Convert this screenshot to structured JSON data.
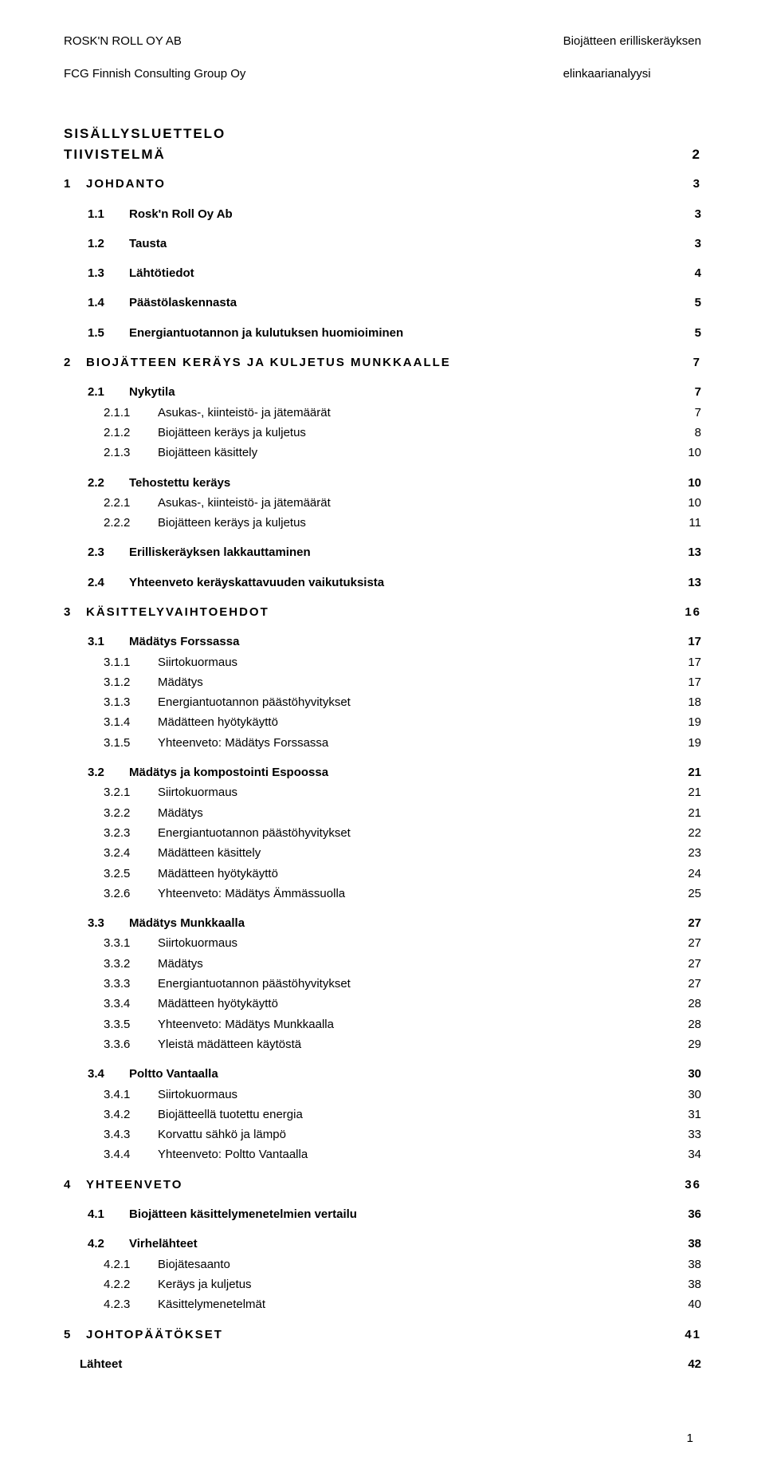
{
  "header": {
    "left_line1": "ROSK'N ROLL OY AB",
    "left_line2": "FCG Finnish Consulting Group Oy",
    "right_line1": "Biojätteen erilliskeräyksen",
    "right_line2": "elinkaarianalyysi"
  },
  "headings": {
    "sisallys": "SISÄLLYSLUETTELO",
    "tiivistelma_label": "TIIVISTELMÄ",
    "tiivistelma_pg": "2"
  },
  "toc": [
    {
      "lvl": 0,
      "bold": true,
      "spaced": true,
      "num": "1",
      "label": "JOHDANTO",
      "pg": "3",
      "gap_before": false
    },
    {
      "lvl": 1,
      "bold": true,
      "spaced": false,
      "num": "1.1",
      "label": "Rosk'n Roll Oy Ab",
      "pg": "3",
      "gap_before": true
    },
    {
      "lvl": 1,
      "bold": true,
      "spaced": false,
      "num": "1.2",
      "label": "Tausta",
      "pg": "3",
      "gap_before": true
    },
    {
      "lvl": 1,
      "bold": true,
      "spaced": false,
      "num": "1.3",
      "label": "Lähtötiedot",
      "pg": "4",
      "gap_before": true
    },
    {
      "lvl": 1,
      "bold": true,
      "spaced": false,
      "num": "1.4",
      "label": "Päästölaskennasta",
      "pg": "5",
      "gap_before": true
    },
    {
      "lvl": 1,
      "bold": true,
      "spaced": false,
      "num": "1.5",
      "label": "Energiantuotannon ja kulutuksen huomioiminen",
      "pg": "5",
      "gap_before": true
    },
    {
      "lvl": 0,
      "bold": true,
      "spaced": true,
      "num": "2",
      "label": "BIOJÄTTEEN KERÄYS JA KULJETUS MUNKKAALLE",
      "pg": "7",
      "gap_before": true
    },
    {
      "lvl": 1,
      "bold": true,
      "spaced": false,
      "num": "2.1",
      "label": "Nykytila",
      "pg": "7",
      "gap_before": true
    },
    {
      "lvl": 2,
      "bold": false,
      "spaced": false,
      "num": "2.1.1",
      "label": "Asukas-, kiinteistö- ja jätemäärät",
      "pg": "7",
      "gap_before": false
    },
    {
      "lvl": 2,
      "bold": false,
      "spaced": false,
      "num": "2.1.2",
      "label": "Biojätteen keräys ja kuljetus",
      "pg": "8",
      "gap_before": false
    },
    {
      "lvl": 2,
      "bold": false,
      "spaced": false,
      "num": "2.1.3",
      "label": "Biojätteen käsittely",
      "pg": "10",
      "gap_before": false
    },
    {
      "lvl": 1,
      "bold": true,
      "spaced": false,
      "num": "2.2",
      "label": "Tehostettu keräys",
      "pg": "10",
      "gap_before": true
    },
    {
      "lvl": 2,
      "bold": false,
      "spaced": false,
      "num": "2.2.1",
      "label": "Asukas-, kiinteistö- ja jätemäärät",
      "pg": "10",
      "gap_before": false
    },
    {
      "lvl": 2,
      "bold": false,
      "spaced": false,
      "num": "2.2.2",
      "label": "Biojätteen keräys ja kuljetus",
      "pg": "11",
      "gap_before": false
    },
    {
      "lvl": 1,
      "bold": true,
      "spaced": false,
      "num": "2.3",
      "label": "Erilliskeräyksen lakkauttaminen",
      "pg": "13",
      "gap_before": true
    },
    {
      "lvl": 1,
      "bold": true,
      "spaced": false,
      "num": "2.4",
      "label": "Yhteenveto keräyskattavuuden vaikutuksista",
      "pg": "13",
      "gap_before": true
    },
    {
      "lvl": 0,
      "bold": true,
      "spaced": true,
      "num": "3",
      "label": "KÄSITTELYVAIHTOEHDOT",
      "pg": "16",
      "gap_before": true
    },
    {
      "lvl": 1,
      "bold": true,
      "spaced": false,
      "num": "3.1",
      "label": "Mädätys Forssassa",
      "pg": "17",
      "gap_before": true
    },
    {
      "lvl": 2,
      "bold": false,
      "spaced": false,
      "num": "3.1.1",
      "label": "Siirtokuormaus",
      "pg": "17",
      "gap_before": false
    },
    {
      "lvl": 2,
      "bold": false,
      "spaced": false,
      "num": "3.1.2",
      "label": "Mädätys",
      "pg": "17",
      "gap_before": false
    },
    {
      "lvl": 2,
      "bold": false,
      "spaced": false,
      "num": "3.1.3",
      "label": "Energiantuotannon päästöhyvitykset",
      "pg": "18",
      "gap_before": false
    },
    {
      "lvl": 2,
      "bold": false,
      "spaced": false,
      "num": "3.1.4",
      "label": "Mädätteen hyötykäyttö",
      "pg": "19",
      "gap_before": false
    },
    {
      "lvl": 2,
      "bold": false,
      "spaced": false,
      "num": "3.1.5",
      "label": "Yhteenveto: Mädätys Forssassa",
      "pg": "19",
      "gap_before": false
    },
    {
      "lvl": 1,
      "bold": true,
      "spaced": false,
      "num": "3.2",
      "label": "Mädätys ja kompostointi Espoossa",
      "pg": "21",
      "gap_before": true
    },
    {
      "lvl": 2,
      "bold": false,
      "spaced": false,
      "num": "3.2.1",
      "label": "Siirtokuormaus",
      "pg": "21",
      "gap_before": false
    },
    {
      "lvl": 2,
      "bold": false,
      "spaced": false,
      "num": "3.2.2",
      "label": "Mädätys",
      "pg": "21",
      "gap_before": false
    },
    {
      "lvl": 2,
      "bold": false,
      "spaced": false,
      "num": "3.2.3",
      "label": "Energiantuotannon päästöhyvitykset",
      "pg": "22",
      "gap_before": false
    },
    {
      "lvl": 2,
      "bold": false,
      "spaced": false,
      "num": "3.2.4",
      "label": "Mädätteen käsittely",
      "pg": "23",
      "gap_before": false
    },
    {
      "lvl": 2,
      "bold": false,
      "spaced": false,
      "num": "3.2.5",
      "label": "Mädätteen hyötykäyttö",
      "pg": "24",
      "gap_before": false
    },
    {
      "lvl": 2,
      "bold": false,
      "spaced": false,
      "num": "3.2.6",
      "label": "Yhteenveto: Mädätys Ämmässuolla",
      "pg": "25",
      "gap_before": false
    },
    {
      "lvl": 1,
      "bold": true,
      "spaced": false,
      "num": "3.3",
      "label": "Mädätys Munkkaalla",
      "pg": "27",
      "gap_before": true
    },
    {
      "lvl": 2,
      "bold": false,
      "spaced": false,
      "num": "3.3.1",
      "label": "Siirtokuormaus",
      "pg": "27",
      "gap_before": false
    },
    {
      "lvl": 2,
      "bold": false,
      "spaced": false,
      "num": "3.3.2",
      "label": "Mädätys",
      "pg": "27",
      "gap_before": false
    },
    {
      "lvl": 2,
      "bold": false,
      "spaced": false,
      "num": "3.3.3",
      "label": "Energiantuotannon päästöhyvitykset",
      "pg": "27",
      "gap_before": false
    },
    {
      "lvl": 2,
      "bold": false,
      "spaced": false,
      "num": "3.3.4",
      "label": "Mädätteen hyötykäyttö",
      "pg": "28",
      "gap_before": false
    },
    {
      "lvl": 2,
      "bold": false,
      "spaced": false,
      "num": "3.3.5",
      "label": "Yhteenveto: Mädätys Munkkaalla",
      "pg": "28",
      "gap_before": false
    },
    {
      "lvl": 2,
      "bold": false,
      "spaced": false,
      "num": "3.3.6",
      "label": "Yleistä mädätteen käytöstä",
      "pg": "29",
      "gap_before": false
    },
    {
      "lvl": 1,
      "bold": true,
      "spaced": false,
      "num": "3.4",
      "label": "Poltto Vantaalla",
      "pg": "30",
      "gap_before": true
    },
    {
      "lvl": 2,
      "bold": false,
      "spaced": false,
      "num": "3.4.1",
      "label": "Siirtokuormaus",
      "pg": "30",
      "gap_before": false
    },
    {
      "lvl": 2,
      "bold": false,
      "spaced": false,
      "num": "3.4.2",
      "label": "Biojätteellä tuotettu energia",
      "pg": "31",
      "gap_before": false
    },
    {
      "lvl": 2,
      "bold": false,
      "spaced": false,
      "num": "3.4.3",
      "label": "Korvattu sähkö ja lämpö",
      "pg": "33",
      "gap_before": false
    },
    {
      "lvl": 2,
      "bold": false,
      "spaced": false,
      "num": "3.4.4",
      "label": "Yhteenveto: Poltto Vantaalla",
      "pg": "34",
      "gap_before": false
    },
    {
      "lvl": 0,
      "bold": true,
      "spaced": true,
      "num": "4",
      "label": "YHTEENVETO",
      "pg": "36",
      "gap_before": true
    },
    {
      "lvl": 1,
      "bold": true,
      "spaced": false,
      "num": "4.1",
      "label": "Biojätteen käsittelymenetelmien vertailu",
      "pg": "36",
      "gap_before": true
    },
    {
      "lvl": 1,
      "bold": true,
      "spaced": false,
      "num": "4.2",
      "label": "Virhelähteet",
      "pg": "38",
      "gap_before": true
    },
    {
      "lvl": 2,
      "bold": false,
      "spaced": false,
      "num": "4.2.1",
      "label": "Biojätesaanto",
      "pg": "38",
      "gap_before": false
    },
    {
      "lvl": 2,
      "bold": false,
      "spaced": false,
      "num": "4.2.2",
      "label": "Keräys ja kuljetus",
      "pg": "38",
      "gap_before": false
    },
    {
      "lvl": 2,
      "bold": false,
      "spaced": false,
      "num": "4.2.3",
      "label": "Käsittelymenetelmät",
      "pg": "40",
      "gap_before": false
    },
    {
      "lvl": 0,
      "bold": true,
      "spaced": true,
      "num": "5",
      "label": "JOHTOPÄÄTÖKSET",
      "pg": "41",
      "gap_before": true
    }
  ],
  "lahteet": {
    "label": "Lähteet",
    "pg": "42"
  },
  "page_number": "1"
}
